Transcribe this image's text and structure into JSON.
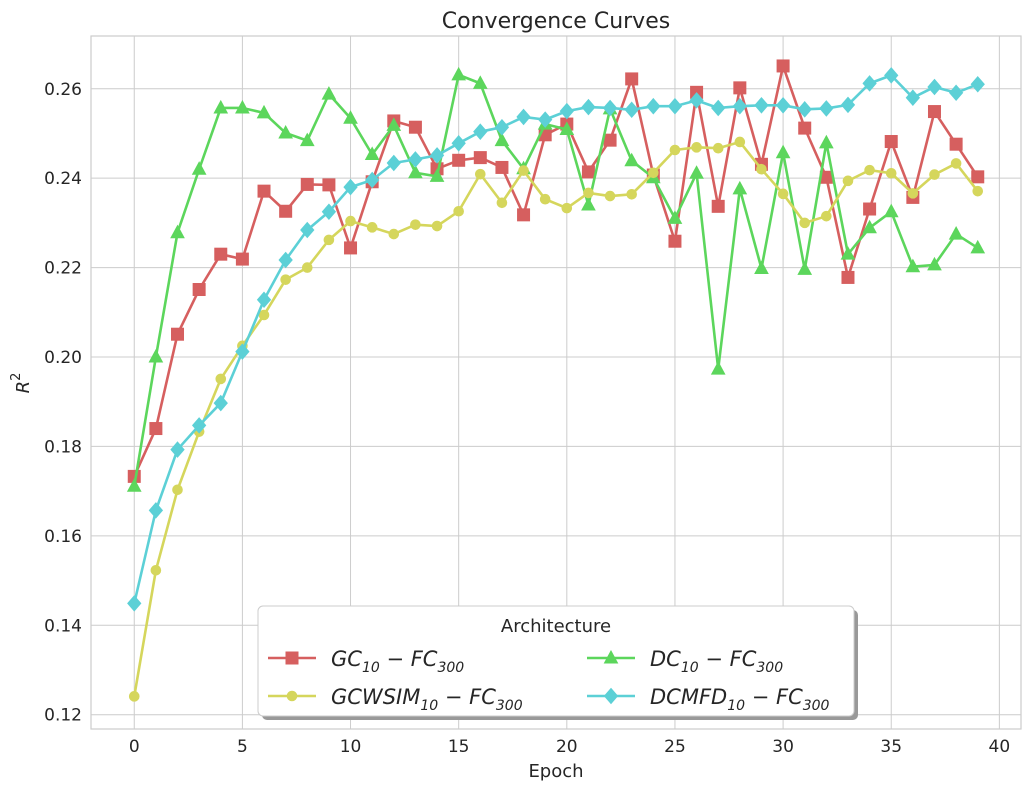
{
  "chart_data": {
    "type": "line",
    "title": "Convergence Curves",
    "xlabel": "Epoch",
    "ylabel": {
      "base": "R",
      "sup": "2"
    },
    "xlim": [
      -2,
      41
    ],
    "ylim": [
      0.1168,
      0.2718
    ],
    "xticks": [
      0,
      5,
      10,
      15,
      20,
      25,
      30,
      35,
      40
    ],
    "yticks": [
      0.12,
      0.14,
      0.16,
      0.18,
      0.2,
      0.22,
      0.24,
      0.26
    ],
    "ytick_labels": [
      "0.12",
      "0.14",
      "0.16",
      "0.18",
      "0.20",
      "0.22",
      "0.24",
      "0.26"
    ],
    "grid": true,
    "legend": {
      "title": "Architecture",
      "placement": "lower-center",
      "columns": 2
    },
    "x": [
      0,
      1,
      2,
      3,
      4,
      5,
      6,
      7,
      8,
      9,
      10,
      11,
      12,
      13,
      14,
      15,
      16,
      17,
      18,
      19,
      20,
      21,
      22,
      23,
      24,
      25,
      26,
      27,
      28,
      29,
      30,
      31,
      32,
      33,
      34,
      35,
      36,
      37,
      38,
      39
    ],
    "series": [
      {
        "id": "gc",
        "label_parts": {
          "a": "GC",
          "a_sub": "10",
          "b": "FC",
          "b_sub": "300"
        },
        "color": "#d65f5f",
        "marker": "square",
        "values": [
          0.1733,
          0.184,
          0.2051,
          0.2151,
          0.223,
          0.2219,
          0.2371,
          0.2326,
          0.2386,
          0.2385,
          0.2244,
          0.2392,
          0.2528,
          0.2514,
          0.2421,
          0.244,
          0.2446,
          0.2424,
          0.2318,
          0.2497,
          0.2521,
          0.2414,
          0.2485,
          0.2622,
          0.2407,
          0.2259,
          0.2592,
          0.2337,
          0.2602,
          0.2431,
          0.2651,
          0.2512,
          0.2402,
          0.2178,
          0.2331,
          0.2482,
          0.2357,
          0.2549,
          0.2476,
          0.2403
        ]
      },
      {
        "id": "dc",
        "label_parts": {
          "a": "DC",
          "a_sub": "10",
          "b": "FC",
          "b_sub": "300"
        },
        "color": "#5cd65c",
        "marker": "triangle",
        "values": [
          0.1711,
          0.2,
          0.2278,
          0.242,
          0.2557,
          0.2557,
          0.2546,
          0.2501,
          0.2484,
          0.2588,
          0.2534,
          0.2453,
          0.2518,
          0.2412,
          0.2404,
          0.2631,
          0.2612,
          0.2484,
          0.2421,
          0.2521,
          0.2509,
          0.234,
          0.2555,
          0.2439,
          0.2401,
          0.231,
          0.2411,
          0.1973,
          0.2376,
          0.2198,
          0.2457,
          0.2196,
          0.2479,
          0.223,
          0.2289,
          0.2325,
          0.2202,
          0.2206,
          0.2275,
          0.2244
        ]
      },
      {
        "id": "gcwsim",
        "label_parts": {
          "a": "GCWSIM",
          "a_sub": "10",
          "b": "FC",
          "b_sub": "300"
        },
        "color": "#d5d65c",
        "marker": "circle",
        "values": [
          0.1241,
          0.1523,
          0.1703,
          0.1833,
          0.1951,
          0.2025,
          0.2094,
          0.2173,
          0.22,
          0.2262,
          0.2304,
          0.229,
          0.2275,
          0.2296,
          0.2293,
          0.2326,
          0.2409,
          0.2345,
          0.2417,
          0.2353,
          0.2333,
          0.2367,
          0.236,
          0.2364,
          0.2412,
          0.2463,
          0.2469,
          0.2467,
          0.2481,
          0.242,
          0.2365,
          0.23,
          0.2315,
          0.2394,
          0.2418,
          0.2411,
          0.2366,
          0.2408,
          0.2433,
          0.2371
        ]
      },
      {
        "id": "dcmfd",
        "label_parts": {
          "a": "DCMFD",
          "a_sub": "10",
          "b": "FC",
          "b_sub": "300"
        },
        "color": "#5cd0d6",
        "marker": "diamond",
        "values": [
          0.1449,
          0.1657,
          0.1793,
          0.1847,
          0.1897,
          0.2012,
          0.2128,
          0.2217,
          0.2284,
          0.2325,
          0.238,
          0.2396,
          0.2434,
          0.2442,
          0.2451,
          0.2478,
          0.2504,
          0.2514,
          0.2537,
          0.2531,
          0.255,
          0.2559,
          0.2557,
          0.2553,
          0.2561,
          0.2561,
          0.2574,
          0.2557,
          0.2561,
          0.2563,
          0.2563,
          0.2554,
          0.2556,
          0.2564,
          0.2612,
          0.263,
          0.258,
          0.2604,
          0.2591,
          0.261
        ]
      }
    ]
  }
}
